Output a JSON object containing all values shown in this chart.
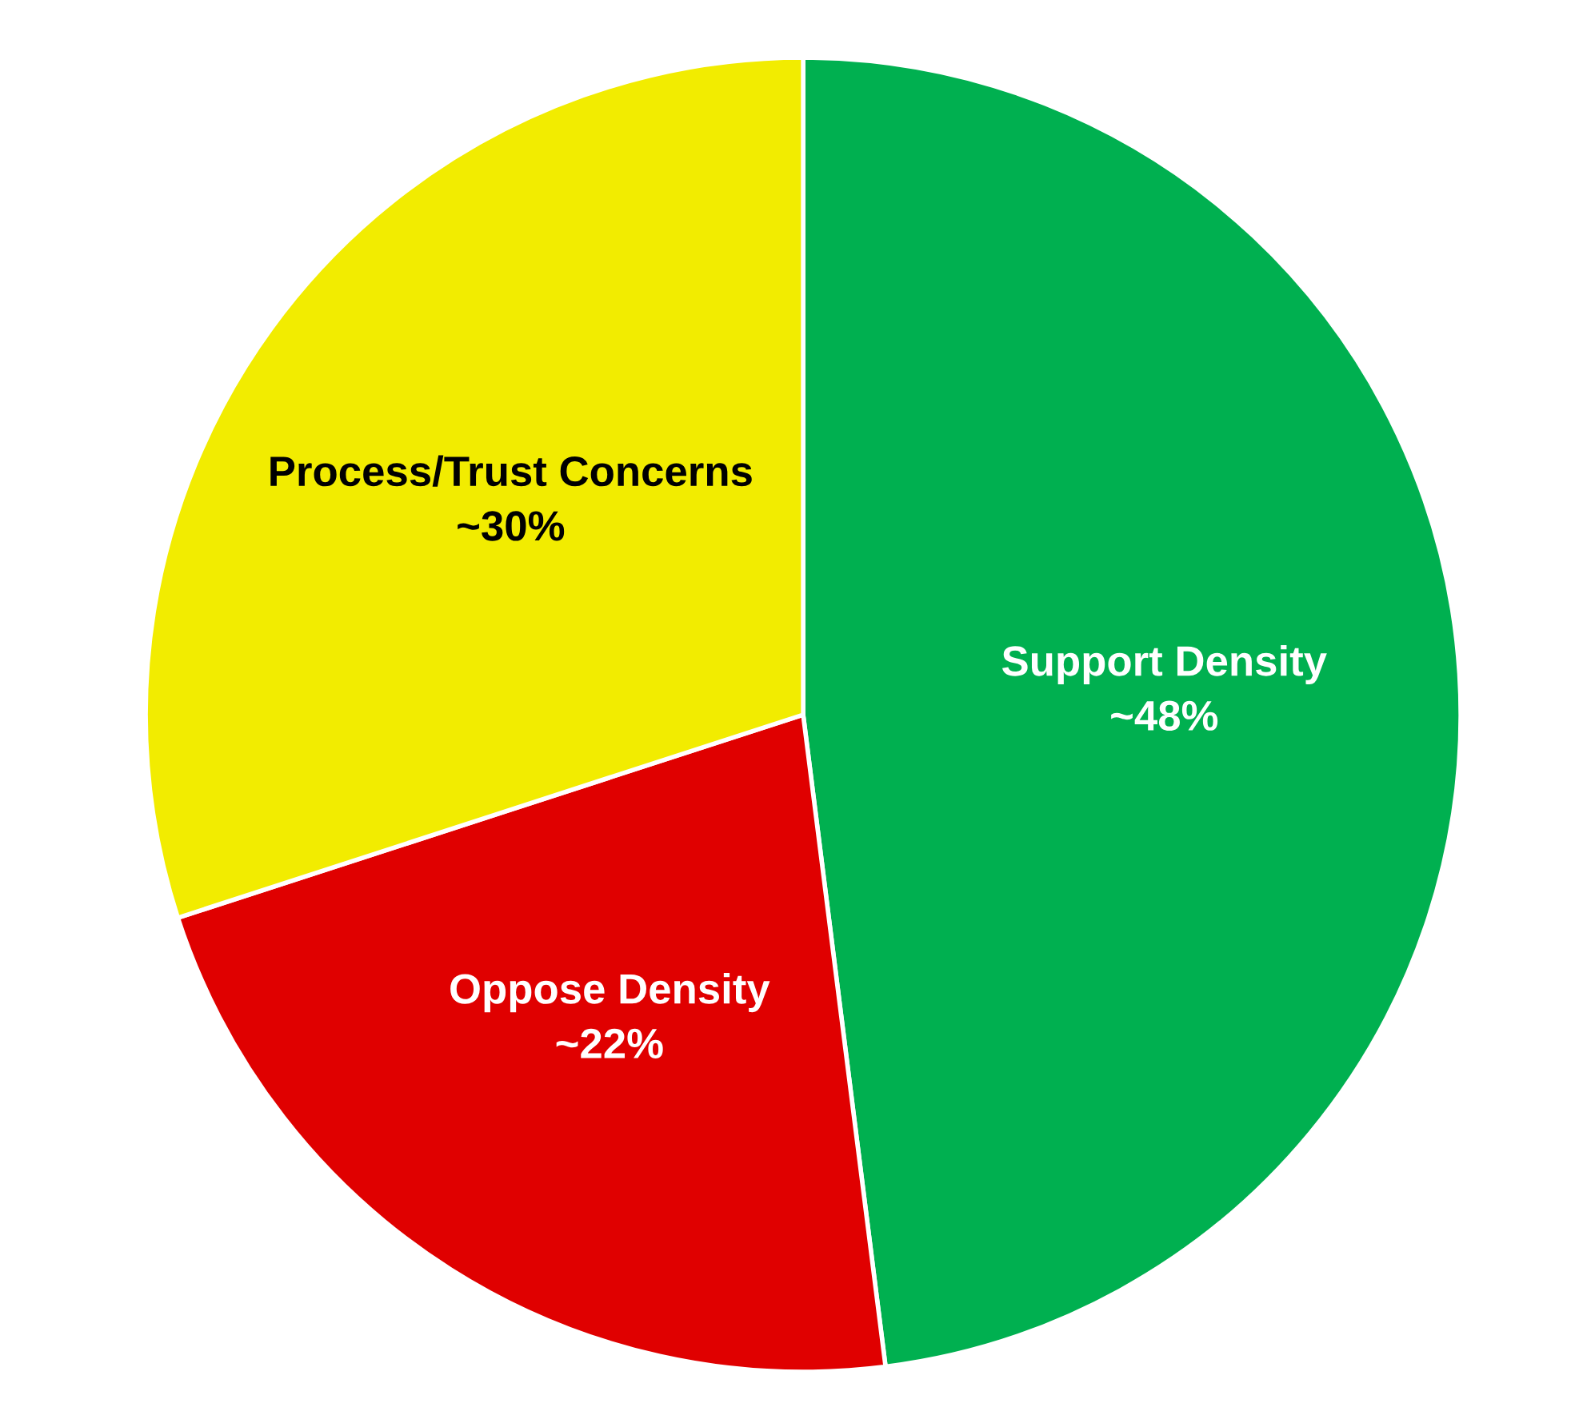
{
  "chart_data": {
    "type": "pie",
    "categories": [
      "Support Density",
      "Oppose Density",
      "Process/Trust Concerns"
    ],
    "values": [
      48,
      22,
      30
    ],
    "value_labels": [
      "~48%",
      "~22%",
      "~30%"
    ],
    "colors": [
      "#00b050",
      "#e00000",
      "#f2ec00"
    ],
    "legend": false
  }
}
